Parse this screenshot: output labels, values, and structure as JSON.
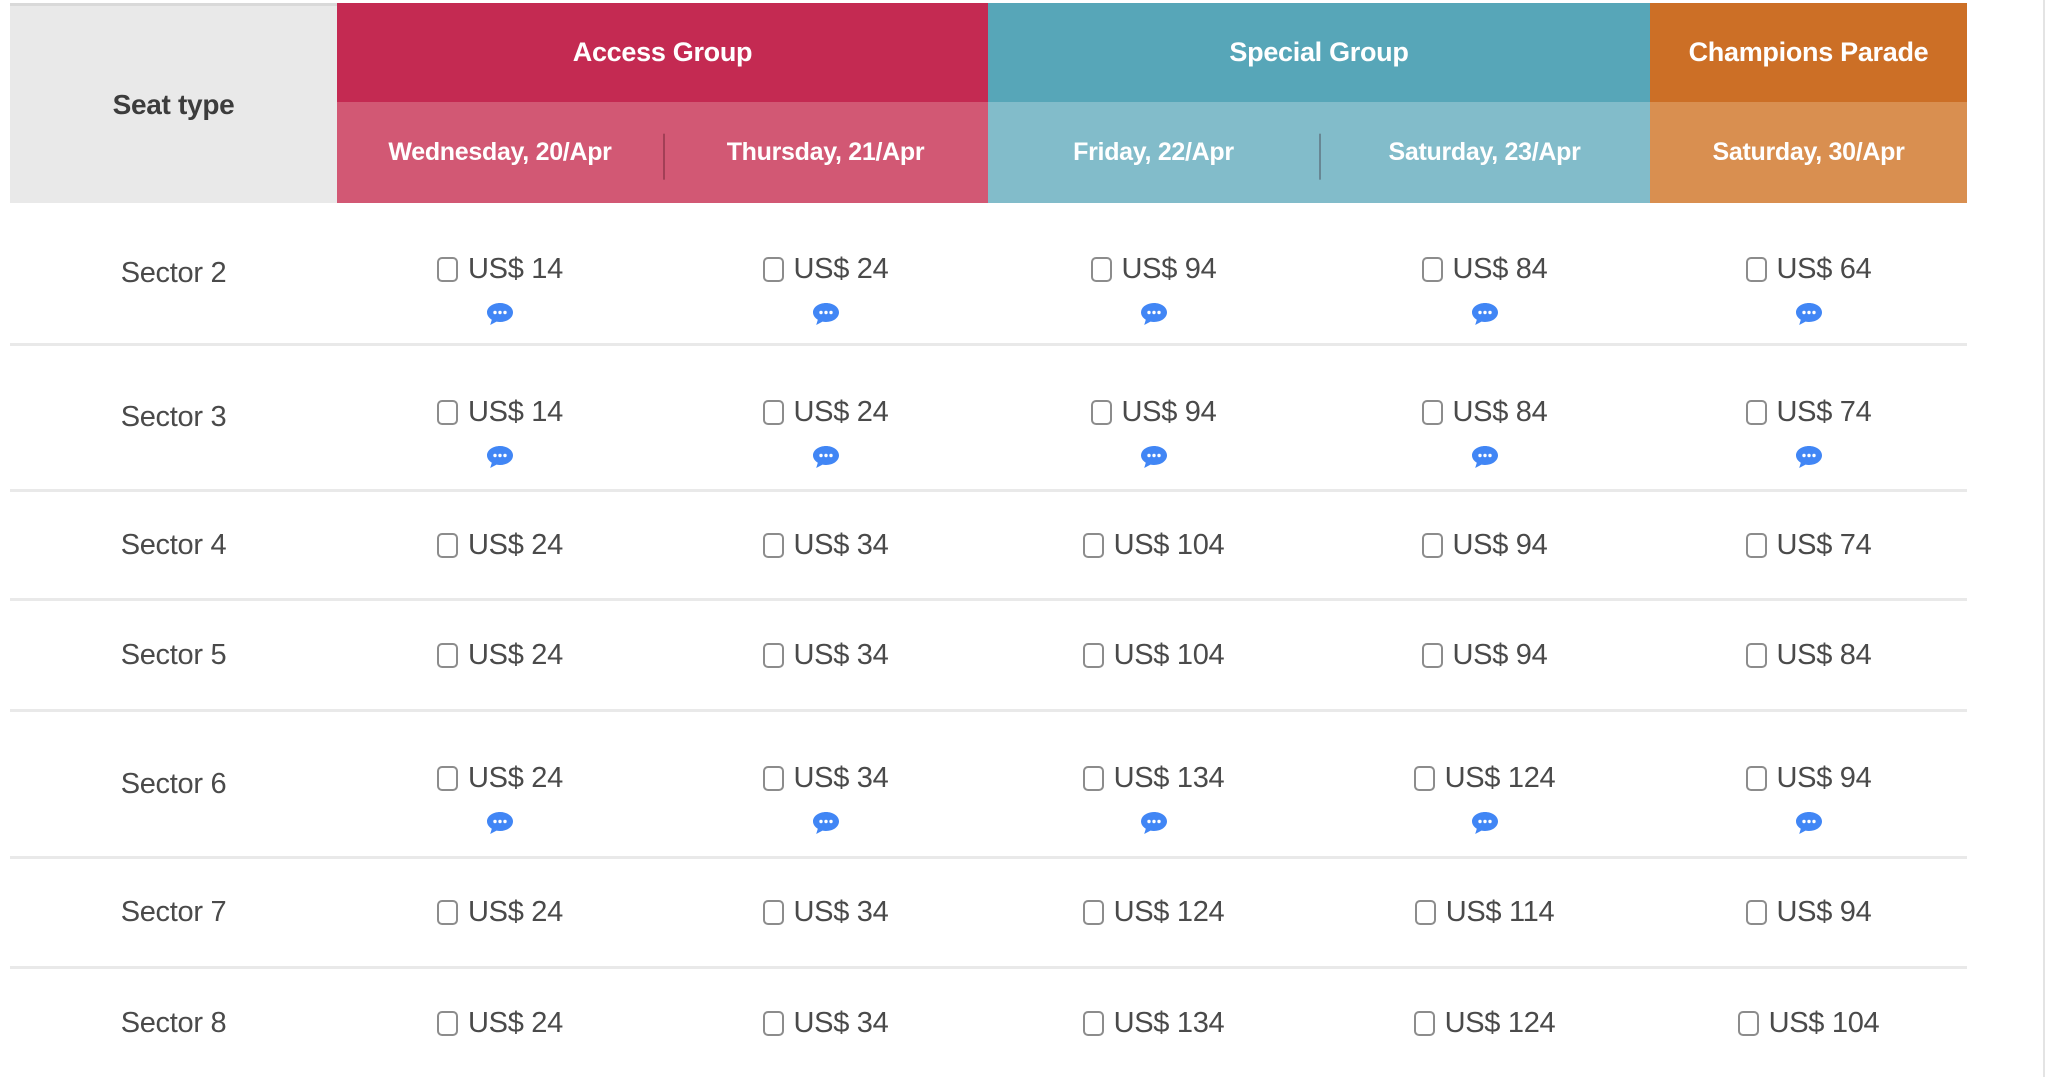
{
  "table": {
    "seat_type_label": "Seat type",
    "groups": [
      {
        "label": "Access Group",
        "color": "#c42a52",
        "sub_color": "#d25874",
        "dates": [
          "Wednesday, 20/Apr",
          "Thursday, 21/Apr"
        ]
      },
      {
        "label": "Special Group",
        "color": "#57a6b8",
        "sub_color": "#82bcca",
        "dates": [
          "Friday, 22/Apr",
          "Saturday, 23/Apr"
        ]
      },
      {
        "label": "Champions Parade",
        "color": "#cc6f26",
        "sub_color": "#d98f50",
        "dates": [
          "Saturday, 30/Apr"
        ]
      }
    ],
    "rows": [
      {
        "label": "Sector 2",
        "cells": [
          "US$ 14",
          "US$ 24",
          "US$ 94",
          "US$ 84",
          "US$ 64"
        ],
        "has_comment": true
      },
      {
        "label": "Sector 3",
        "cells": [
          "US$ 14",
          "US$ 24",
          "US$ 94",
          "US$ 84",
          "US$ 74"
        ],
        "has_comment": true
      },
      {
        "label": "Sector 4",
        "cells": [
          "US$ 24",
          "US$ 34",
          "US$ 104",
          "US$ 94",
          "US$ 74"
        ],
        "has_comment": false
      },
      {
        "label": "Sector 5",
        "cells": [
          "US$ 24",
          "US$ 34",
          "US$ 104",
          "US$ 94",
          "US$ 84"
        ],
        "has_comment": false
      },
      {
        "label": "Sector 6",
        "cells": [
          "US$ 24",
          "US$ 34",
          "US$ 134",
          "US$ 124",
          "US$ 94"
        ],
        "has_comment": true
      },
      {
        "label": "Sector 7",
        "cells": [
          "US$ 24",
          "US$ 34",
          "US$ 124",
          "US$ 114",
          "US$ 94"
        ],
        "has_comment": false
      },
      {
        "label": "Sector 8",
        "cells": [
          "US$ 24",
          "US$ 34",
          "US$ 134",
          "US$ 124",
          "US$ 104"
        ],
        "has_comment": false
      }
    ],
    "icons": {
      "comment": "comment-bubble-icon",
      "checkbox": "price-checkbox"
    },
    "colors": {
      "comment_blue": "#4186f5",
      "seat_header_bg": "#e9e9e9",
      "row_divider": "#e9e9e9",
      "body_text": "#4a4a4a"
    }
  }
}
